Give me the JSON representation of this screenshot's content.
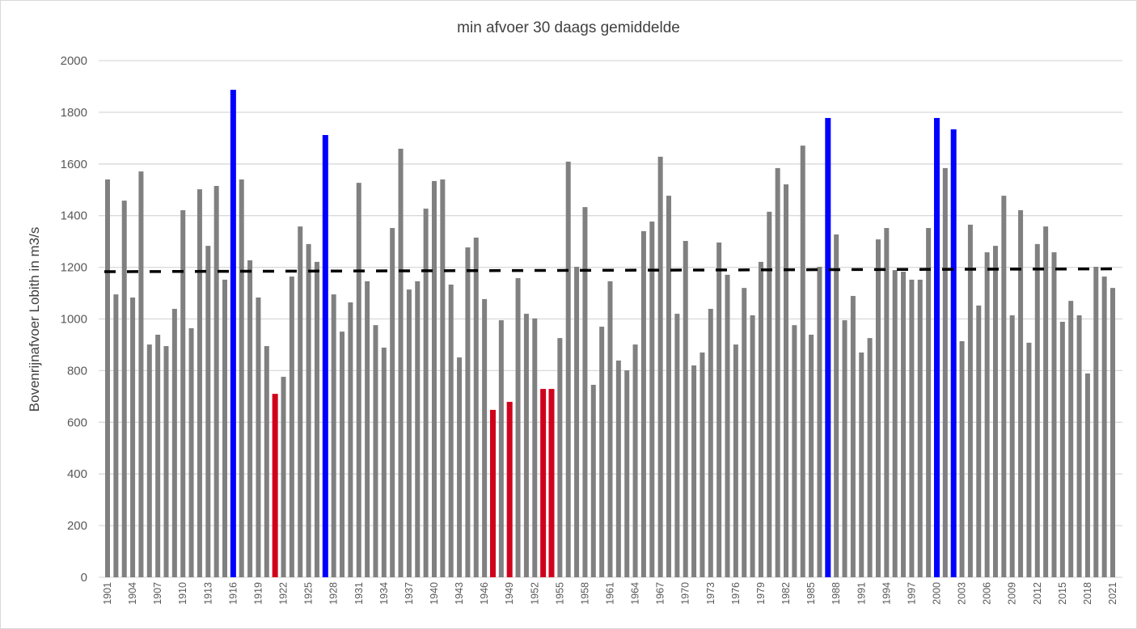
{
  "chart_data": {
    "type": "bar",
    "title": "min afvoer 30 daags gemiddelde",
    "xlabel": "",
    "ylabel": "Bovenrijnafvoer Lobith in m3/s",
    "ylim": [
      0,
      2000
    ],
    "yticks": [
      0,
      200,
      400,
      600,
      800,
      1000,
      1200,
      1400,
      1600,
      1800,
      2000
    ],
    "grid": true,
    "legend": "none",
    "x_start": 1901,
    "x_end": 2021,
    "xtick_labels": [
      "1901",
      "1904",
      "1907",
      "1910",
      "1913",
      "1916",
      "1919",
      "1922",
      "1925",
      "1928",
      "1931",
      "1934",
      "1937",
      "1940",
      "1943",
      "1946",
      "1949",
      "1952",
      "1955",
      "1958",
      "1961",
      "1964",
      "1967",
      "1970",
      "1973",
      "1976",
      "1979",
      "1982",
      "1985",
      "1988",
      "1991",
      "1994",
      "1997",
      "2000",
      "2003",
      "2006",
      "2009",
      "2012",
      "2015",
      "2018",
      "2021"
    ],
    "values": [
      1540,
      1095,
      1458,
      1083,
      1571,
      901,
      939,
      895,
      1039,
      1421,
      964,
      1502,
      1283,
      1515,
      1152,
      1887,
      1540,
      1227,
      1083,
      895,
      710,
      776,
      1164,
      1358,
      1290,
      1221,
      1712,
      1095,
      951,
      1064,
      1527,
      1146,
      976,
      889,
      1352,
      1659,
      1114,
      1146,
      1427,
      1534,
      1540,
      1133,
      851,
      1277,
      1315,
      1077,
      648,
      995,
      679,
      1158,
      1020,
      1002,
      729,
      729,
      926,
      1609,
      1202,
      1433,
      745,
      970,
      1146,
      839,
      801,
      901,
      1340,
      1377,
      1628,
      1477,
      1020,
      1302,
      820,
      870,
      1039,
      1296,
      1171,
      901,
      1120,
      1014,
      1221,
      1415,
      1584,
      1521,
      976,
      1671,
      939,
      1202,
      1778,
      1327,
      995,
      1089,
      870,
      926,
      1308,
      1352,
      1189,
      1183,
      1152,
      1152,
      1352,
      1778,
      1584,
      1734,
      914,
      1365,
      1052,
      1258,
      1283,
      1477,
      1014,
      1421,
      908,
      1290,
      1358,
      1258,
      989,
      1070,
      1014,
      789,
      1202,
      1164,
      1120
    ],
    "highlight_high_years": [
      1916,
      1927,
      1987,
      2000,
      2002
    ],
    "highlight_low_years": [
      1921,
      1947,
      1949,
      1953,
      1954
    ],
    "trendline": {
      "style": "dashed",
      "start_value": 1183,
      "end_value": 1194
    },
    "colors": {
      "default": "#808080",
      "high": "#0000FF",
      "low": "#D0021B",
      "trendline": "#000000",
      "grid": "#d9d9d9"
    }
  }
}
